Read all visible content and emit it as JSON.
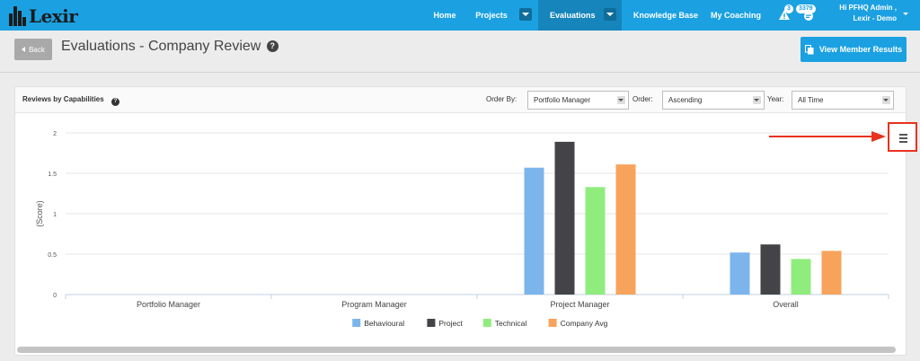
{
  "brand": {
    "name": "Lexir"
  },
  "nav": {
    "items": [
      {
        "label": "Home"
      },
      {
        "label": "Projects"
      },
      {
        "label": "Evaluations"
      },
      {
        "label": "Knowledge Base"
      },
      {
        "label": "My Coaching"
      }
    ],
    "active": "Evaluations",
    "notifications": {
      "alerts_count": "3",
      "messages_count": "3379"
    },
    "user": {
      "greeting": "Hi PFHQ Admin ,",
      "org": "Lexir - Demo"
    }
  },
  "header": {
    "back_label": "Back",
    "title": "Evaluations - Company Review",
    "view_results_label": "View Member Results"
  },
  "panel": {
    "title": "Reviews by Capabilities",
    "filters": {
      "order_by_label": "Order By:",
      "order_by_value": "Portfolio Manager",
      "order_label": "Order:",
      "order_value": "Ascending",
      "year_label": "Year:",
      "year_value": "All Time"
    }
  },
  "colors": {
    "brand_blue": "#1ba1e2",
    "behavioural": "#7cb5ec",
    "project": "#434348",
    "technical": "#90ed7d",
    "company_avg": "#f7a35c",
    "highlight": "#e8321e"
  },
  "chart_data": {
    "type": "bar",
    "categories": [
      "Portfolio Manager",
      "Program Manager",
      "Project Manager",
      "Overall"
    ],
    "ylabel": "(Score)",
    "ylim": [
      0,
      2
    ],
    "yticks": [
      "0",
      "0.5",
      "1",
      "1.5",
      "2"
    ],
    "legend_position": "bottom",
    "grid": true,
    "series": [
      {
        "name": "Behavioural",
        "color": "#7cb5ec",
        "values": [
          0,
          0,
          1.57,
          0.52
        ]
      },
      {
        "name": "Project",
        "color": "#434348",
        "values": [
          0,
          0,
          1.89,
          0.62
        ]
      },
      {
        "name": "Technical",
        "color": "#90ed7d",
        "values": [
          0,
          0,
          1.33,
          0.44
        ]
      },
      {
        "name": "Company Avg",
        "color": "#f7a35c",
        "values": [
          0,
          0,
          1.61,
          0.54
        ]
      }
    ]
  },
  "icons": [
    "lexir-logo-icon",
    "alert-icon",
    "messages-icon",
    "help-icon",
    "document-icon",
    "chart-menu-icon",
    "arrow-annotation"
  ]
}
